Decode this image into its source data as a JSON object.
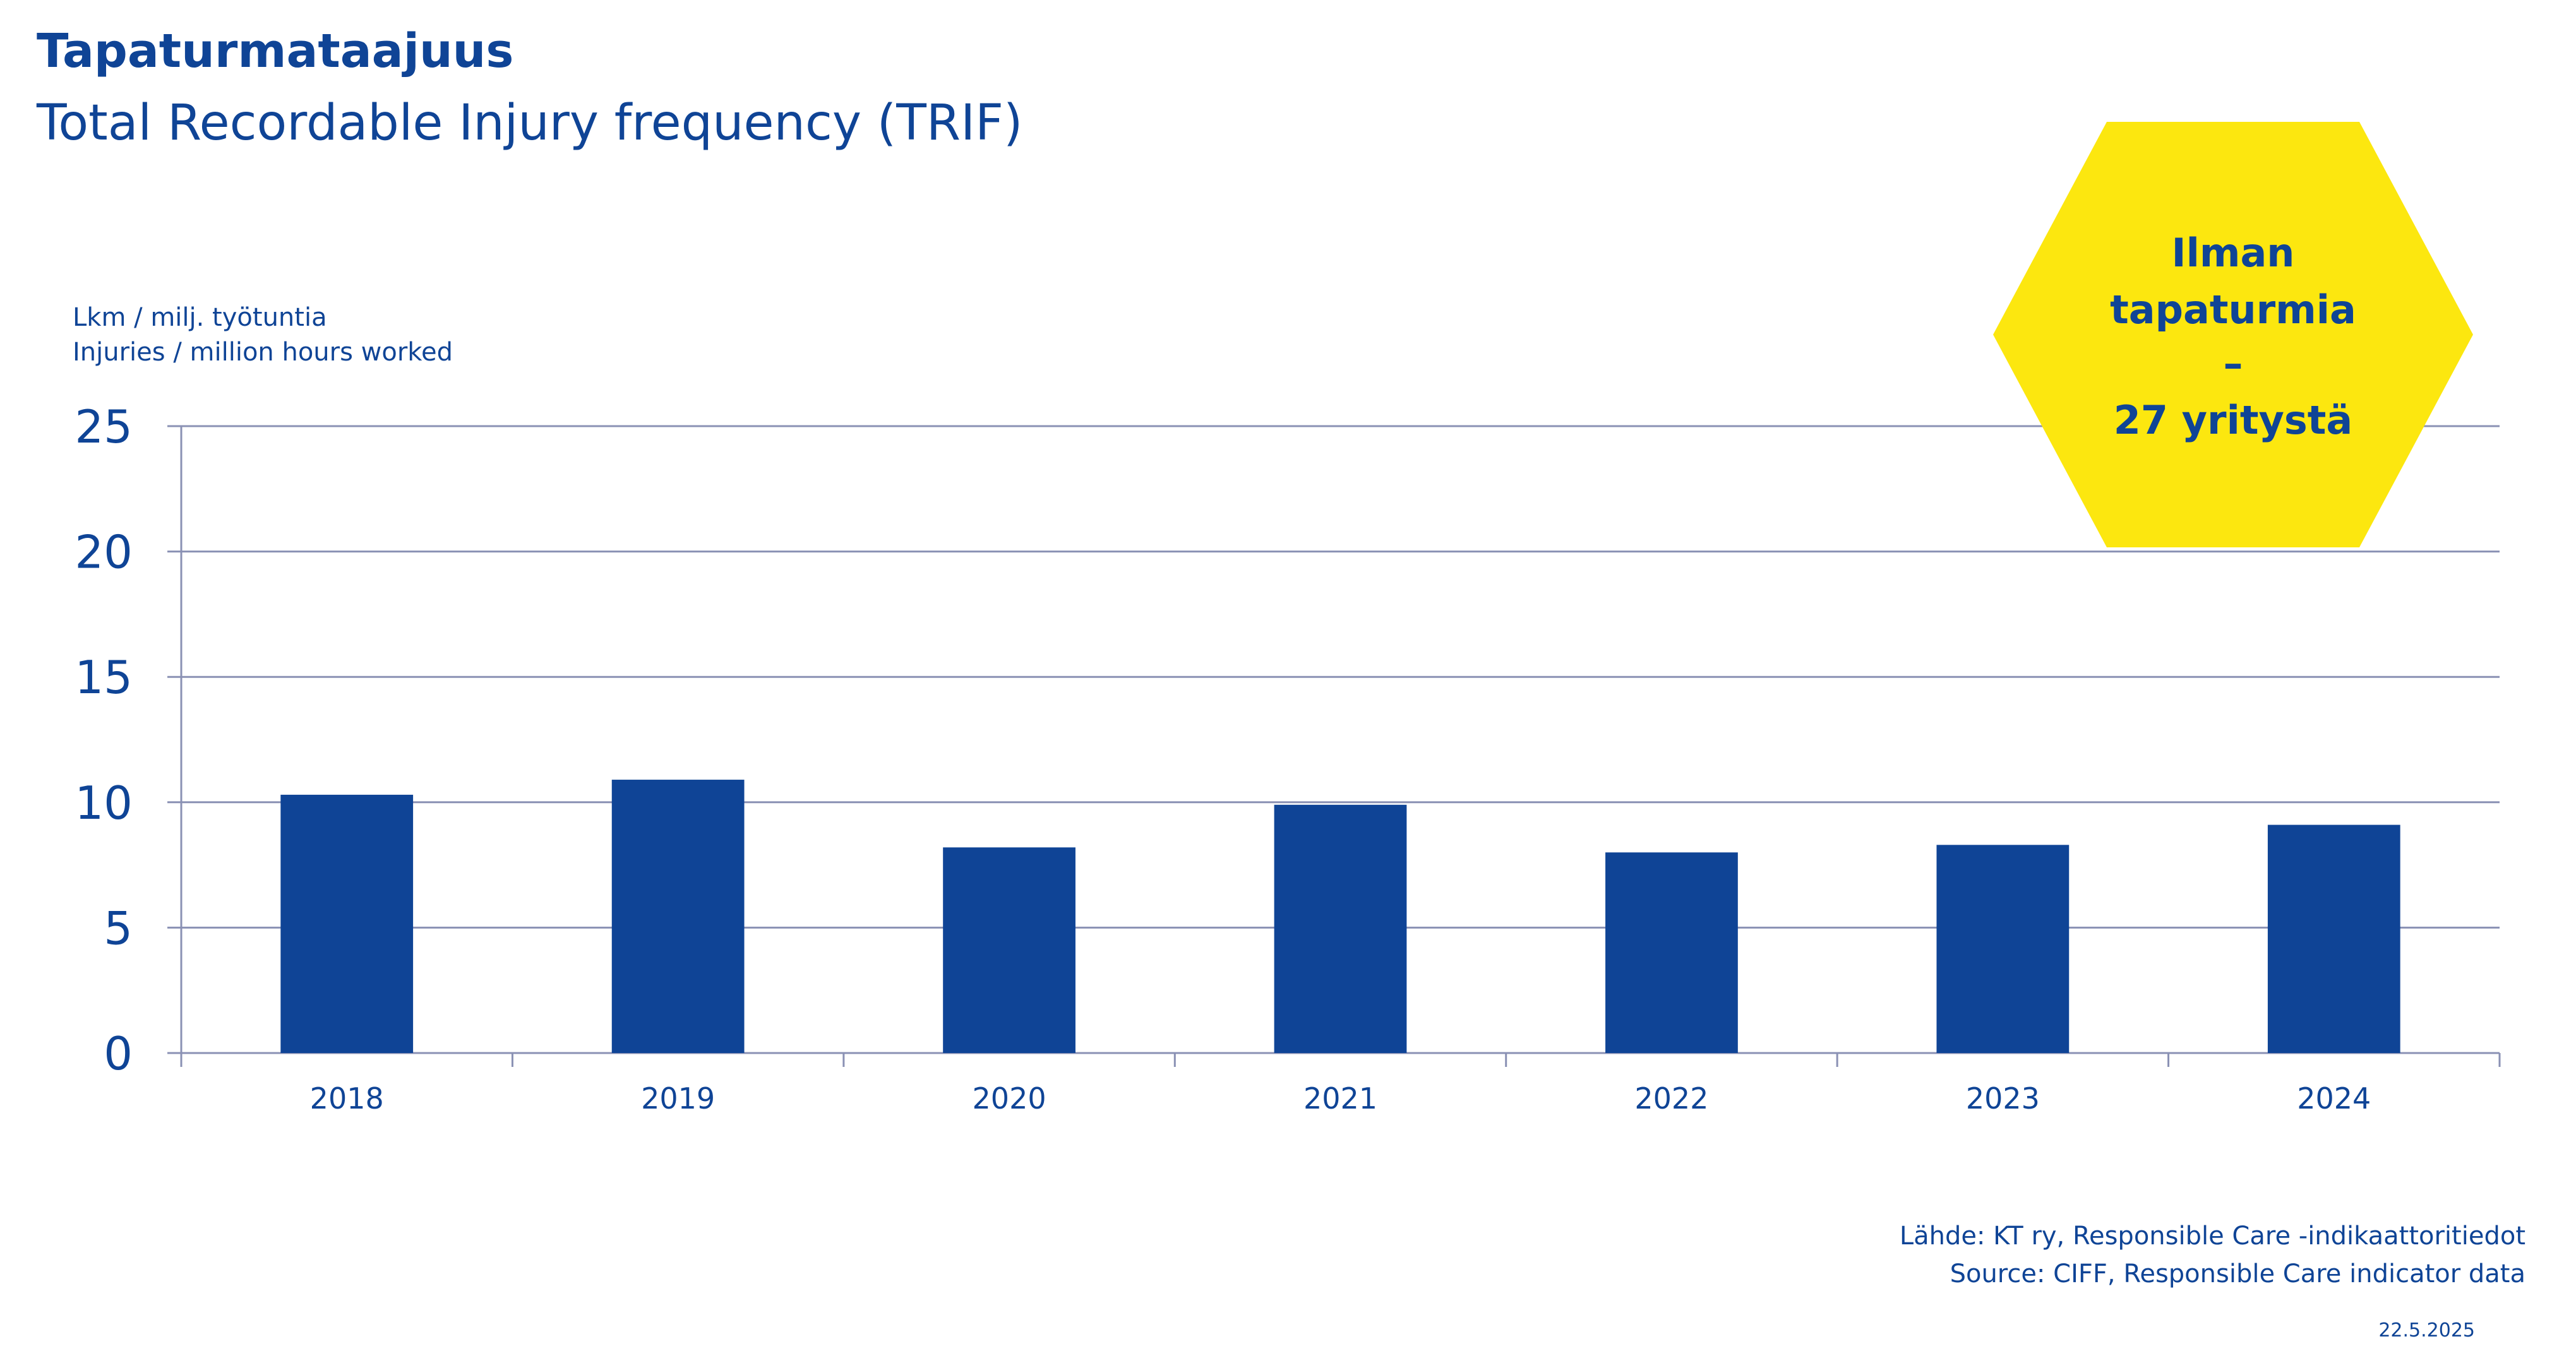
{
  "header": {
    "title": "Tapaturmataajuus",
    "subtitle": "Total Recordable Injury frequency (TRIF)"
  },
  "unit_label": {
    "fi": "Lkm / milj. työtuntia",
    "en": "Injuries / million hours worked"
  },
  "badge": {
    "lines": [
      "Ilman",
      "tapaturmia",
      "–",
      "27 yritystä"
    ],
    "color": "#fce70f"
  },
  "footer": {
    "source_fi": "Lähde: KT ry, Responsible Care -indikaattoritiedot",
    "source_en": "Source: CIFF, Responsible Care indicator data",
    "date": "22.5.2025"
  },
  "colors": {
    "bar": "#0f4496",
    "text": "#0f4496",
    "grid": "#8a91b4"
  },
  "chart_data": {
    "type": "bar",
    "categories": [
      "2018",
      "2019",
      "2020",
      "2021",
      "2022",
      "2023",
      "2024"
    ],
    "values": [
      10.3,
      10.9,
      8.2,
      9.9,
      8.0,
      8.3,
      9.1
    ],
    "ylim": [
      0,
      25
    ],
    "yticks": [
      "0",
      "5",
      "10",
      "15",
      "20",
      "25"
    ],
    "grid": true
  }
}
